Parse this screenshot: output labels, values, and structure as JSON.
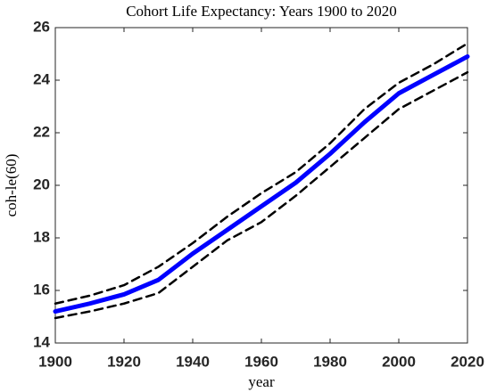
{
  "chart_data": {
    "type": "line",
    "title": "Cohort Life Expectancy: Years 1900 to 2020",
    "x_label": "year",
    "y_label": "coh-le(60)",
    "x": [
      1900,
      1910,
      1920,
      1930,
      1940,
      1950,
      1960,
      1970,
      1980,
      1990,
      2000,
      2010,
      2020
    ],
    "series": [
      {
        "color": "#0000ff",
        "dashed": false,
        "width": 5,
        "values": [
          15.2,
          15.5,
          15.85,
          16.4,
          17.4,
          18.3,
          19.2,
          20.1,
          21.2,
          22.4,
          23.5,
          24.2,
          24.9
        ]
      },
      {
        "color": "#000000",
        "dashed": true,
        "width": 2.5,
        "values": [
          15.5,
          15.8,
          16.2,
          16.9,
          17.8,
          18.8,
          19.7,
          20.5,
          21.6,
          22.9,
          23.9,
          24.6,
          25.4
        ]
      },
      {
        "color": "#000000",
        "dashed": true,
        "width": 2.5,
        "values": [
          14.95,
          15.2,
          15.5,
          15.9,
          16.9,
          17.9,
          18.6,
          19.6,
          20.7,
          21.8,
          22.9,
          23.6,
          24.3
        ]
      }
    ],
    "xlim": [
      1900,
      2020
    ],
    "xticks": [
      1900,
      1920,
      1940,
      1960,
      1980,
      2000,
      2020
    ],
    "ylim": [
      14,
      26
    ],
    "yticks": [
      14,
      16,
      18,
      20,
      22,
      24,
      26
    ],
    "grid": false
  }
}
